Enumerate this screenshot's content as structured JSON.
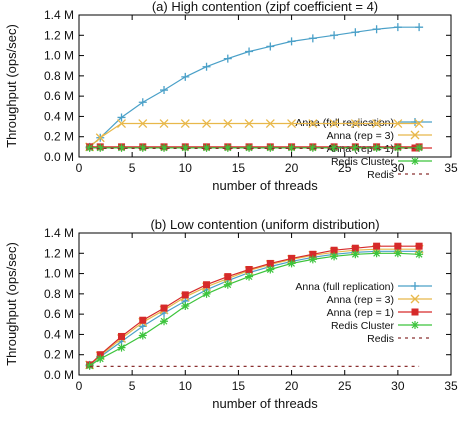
{
  "chart_data": [
    {
      "type": "line",
      "title": "(a) High contention (zipf coefficient = 4)",
      "xlabel": "number of threads",
      "ylabel": "Throughput (ops/sec)",
      "xlim": [
        0,
        35
      ],
      "ylim": [
        0,
        1.4
      ],
      "xticks": [
        0,
        5,
        10,
        15,
        20,
        25,
        30,
        35
      ],
      "yticks": [
        0,
        0.2,
        0.4,
        0.6,
        0.8,
        1.0,
        1.2,
        1.4
      ],
      "ytick_labels": [
        "0.0 M",
        "0.2 M",
        "0.4 M",
        "0.6 M",
        "0.8 M",
        "1.0 M",
        "1.2 M",
        "1.4 M"
      ],
      "grid": false,
      "legend_position": "right",
      "series": [
        {
          "name": "Anna (full replication)",
          "color": "#4aa0c8",
          "marker": "plus",
          "x": [
            1,
            2,
            4,
            6,
            8,
            10,
            12,
            14,
            16,
            18,
            20,
            22,
            24,
            26,
            28,
            30,
            32
          ],
          "y": [
            0.1,
            0.19,
            0.39,
            0.54,
            0.66,
            0.79,
            0.89,
            0.97,
            1.04,
            1.09,
            1.14,
            1.17,
            1.2,
            1.23,
            1.26,
            1.28,
            1.28
          ]
        },
        {
          "name": "Anna (rep = 3)",
          "color": "#e8b84a",
          "marker": "x",
          "x": [
            1,
            2,
            4,
            6,
            8,
            10,
            12,
            14,
            16,
            18,
            20,
            22,
            24,
            26,
            28,
            30,
            32
          ],
          "y": [
            0.1,
            0.19,
            0.33,
            0.33,
            0.33,
            0.33,
            0.33,
            0.33,
            0.33,
            0.33,
            0.33,
            0.33,
            0.33,
            0.33,
            0.33,
            0.33,
            0.33
          ]
        },
        {
          "name": "Anna (rep = 1)",
          "color": "#d62a2a",
          "marker": "square",
          "x": [
            1,
            2,
            4,
            6,
            8,
            10,
            12,
            14,
            16,
            18,
            20,
            22,
            24,
            26,
            28,
            30,
            32
          ],
          "y": [
            0.1,
            0.1,
            0.1,
            0.1,
            0.1,
            0.1,
            0.1,
            0.1,
            0.1,
            0.1,
            0.1,
            0.1,
            0.1,
            0.1,
            0.1,
            0.1,
            0.1
          ]
        },
        {
          "name": "Redis Cluster",
          "color": "#3cc43c",
          "marker": "star",
          "x": [
            1,
            2,
            4,
            6,
            8,
            10,
            12,
            14,
            16,
            18,
            20,
            22,
            24,
            26,
            28,
            30,
            32
          ],
          "y": [
            0.09,
            0.09,
            0.09,
            0.09,
            0.09,
            0.09,
            0.09,
            0.09,
            0.09,
            0.09,
            0.09,
            0.09,
            0.09,
            0.09,
            0.09,
            0.09,
            0.09
          ]
        },
        {
          "name": "Redis",
          "color": "#8a3030",
          "marker": "none",
          "dash": true,
          "x": [
            1,
            32
          ],
          "y": [
            0.085,
            0.085
          ]
        }
      ]
    },
    {
      "type": "line",
      "title": "(b) Low contention (uniform distribution)",
      "xlabel": "number of threads",
      "ylabel": "Throughput (ops/sec)",
      "xlim": [
        0,
        35
      ],
      "ylim": [
        0,
        1.4
      ],
      "xticks": [
        0,
        5,
        10,
        15,
        20,
        25,
        30,
        35
      ],
      "yticks": [
        0,
        0.2,
        0.4,
        0.6,
        0.8,
        1.0,
        1.2,
        1.4
      ],
      "ytick_labels": [
        "0.0 M",
        "0.2 M",
        "0.4 M",
        "0.6 M",
        "0.8 M",
        "1.0 M",
        "1.2 M",
        "1.4 M"
      ],
      "grid": false,
      "legend_position": "right",
      "series": [
        {
          "name": "Anna (full replication)",
          "color": "#4aa0c8",
          "marker": "plus",
          "x": [
            1,
            2,
            4,
            6,
            8,
            10,
            12,
            14,
            16,
            18,
            20,
            22,
            24,
            26,
            28,
            30,
            32
          ],
          "y": [
            0.1,
            0.18,
            0.33,
            0.48,
            0.61,
            0.73,
            0.84,
            0.93,
            1.01,
            1.07,
            1.12,
            1.16,
            1.19,
            1.21,
            1.22,
            1.22,
            1.22
          ]
        },
        {
          "name": "Anna (rep = 3)",
          "color": "#e8b84a",
          "marker": "x",
          "x": [
            1,
            2,
            4,
            6,
            8,
            10,
            12,
            14,
            16,
            18,
            20,
            22,
            24,
            26,
            28,
            30,
            32
          ],
          "y": [
            0.1,
            0.19,
            0.36,
            0.52,
            0.64,
            0.77,
            0.87,
            0.95,
            1.03,
            1.09,
            1.14,
            1.18,
            1.21,
            1.23,
            1.24,
            1.24,
            1.24
          ]
        },
        {
          "name": "Anna (rep = 1)",
          "color": "#d62a2a",
          "marker": "square",
          "x": [
            1,
            2,
            4,
            6,
            8,
            10,
            12,
            14,
            16,
            18,
            20,
            22,
            24,
            26,
            28,
            30,
            32
          ],
          "y": [
            0.1,
            0.2,
            0.38,
            0.54,
            0.66,
            0.79,
            0.89,
            0.97,
            1.04,
            1.1,
            1.15,
            1.19,
            1.23,
            1.25,
            1.27,
            1.27,
            1.27
          ]
        },
        {
          "name": "Redis Cluster",
          "color": "#3cc43c",
          "marker": "star",
          "x": [
            1,
            2,
            4,
            6,
            8,
            10,
            12,
            14,
            16,
            18,
            20,
            22,
            24,
            26,
            28,
            30,
            32
          ],
          "y": [
            0.09,
            0.16,
            0.27,
            0.39,
            0.53,
            0.68,
            0.8,
            0.89,
            0.97,
            1.04,
            1.1,
            1.14,
            1.17,
            1.19,
            1.2,
            1.2,
            1.19
          ]
        },
        {
          "name": "Redis",
          "color": "#8a3030",
          "marker": "none",
          "dash": true,
          "x": [
            1,
            32
          ],
          "y": [
            0.085,
            0.085
          ]
        }
      ]
    }
  ]
}
